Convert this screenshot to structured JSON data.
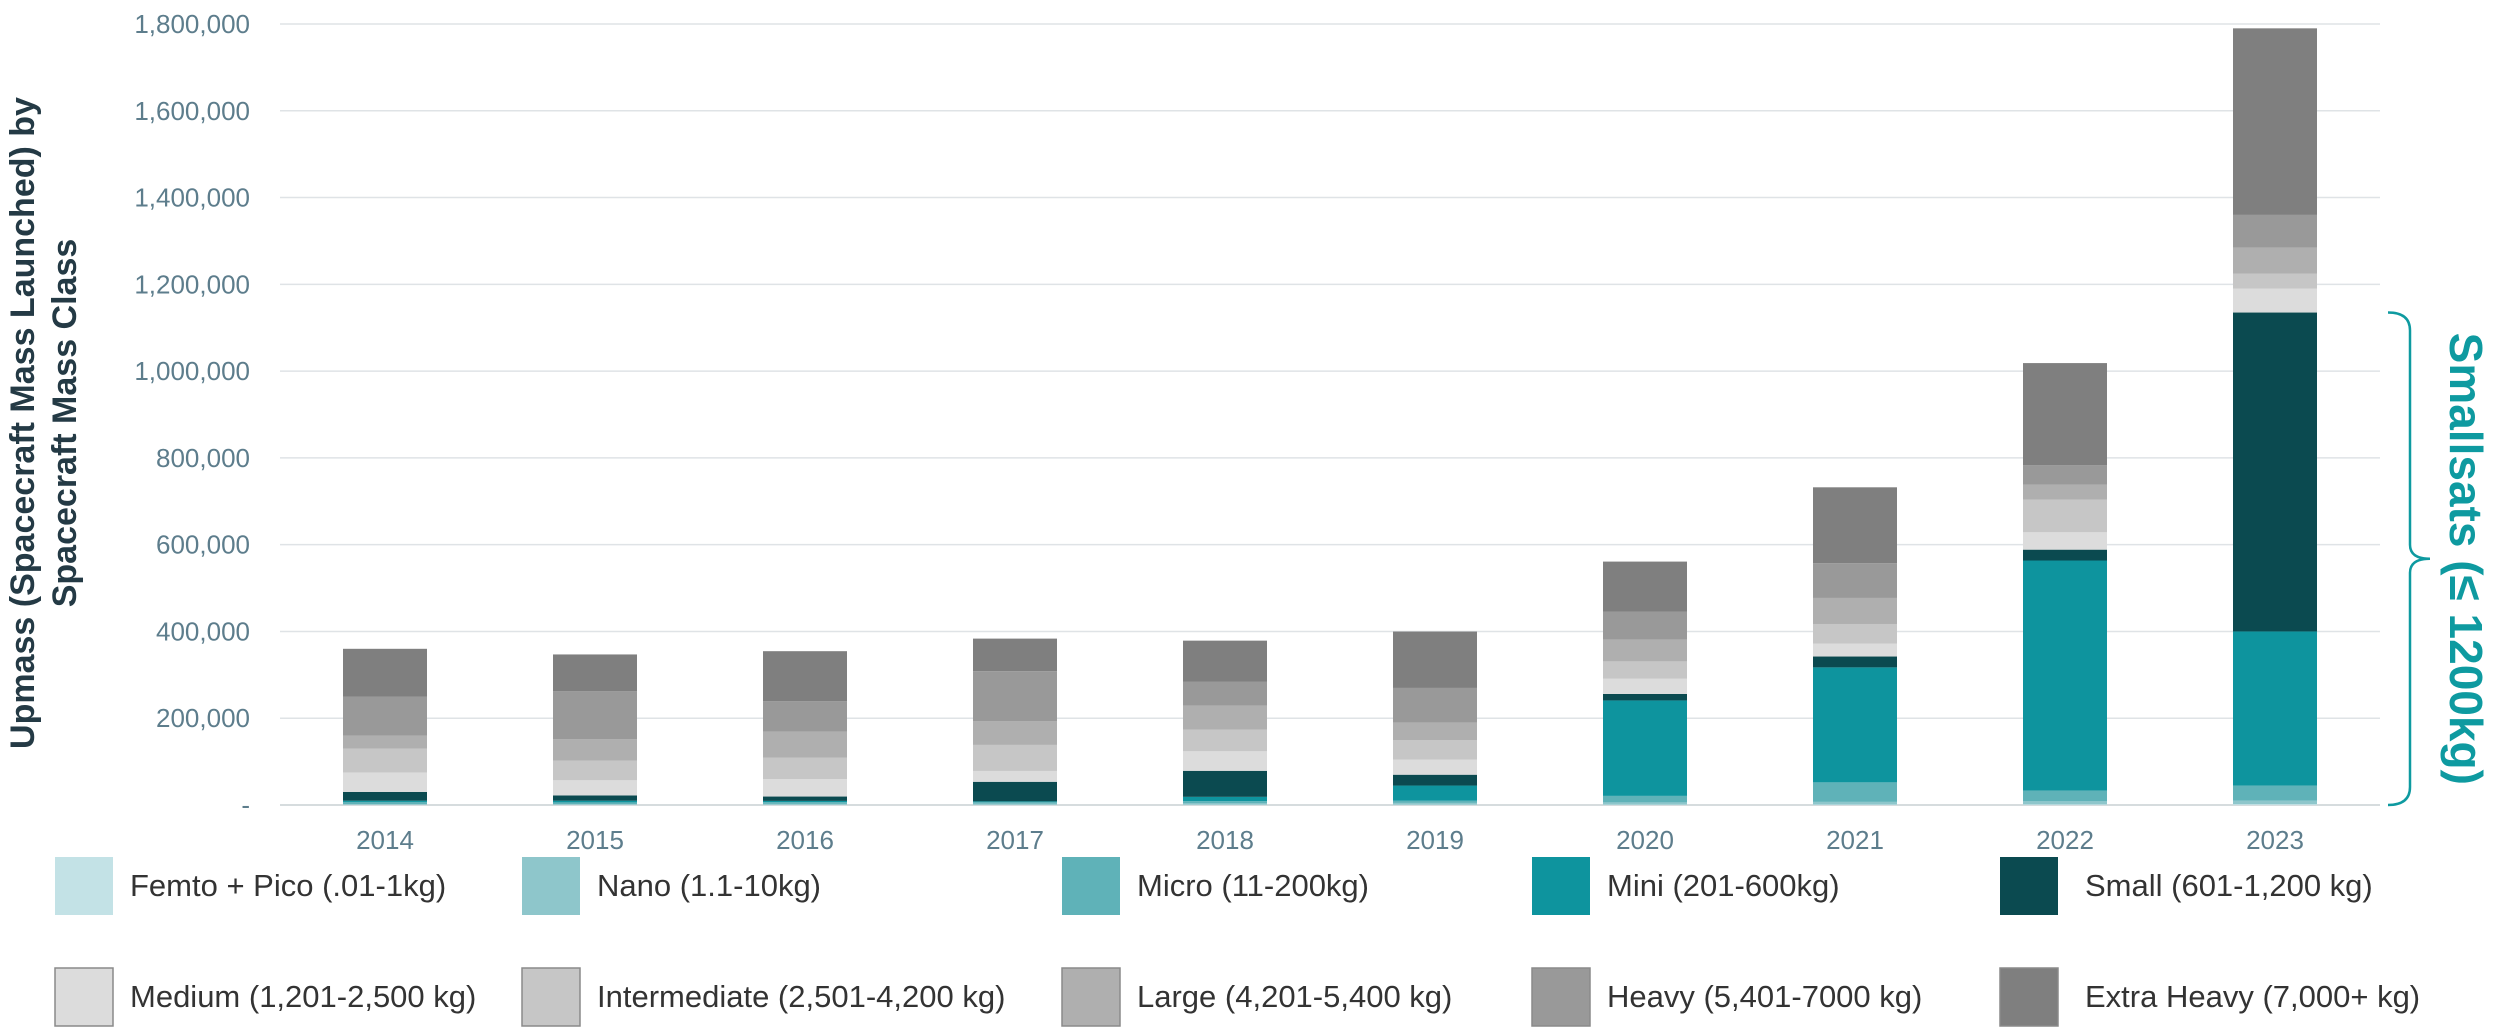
{
  "chart_data": {
    "type": "bar",
    "stacked": true,
    "title": "",
    "xlabel": "",
    "ylabel": "Upmass (Spacecraft Mass Launched) by Spacecraft Mass Class",
    "ylim": [
      0,
      1800000
    ],
    "yticks": [
      "-",
      "200,000",
      "400,000",
      "600,000",
      "800,000",
      "1,000,000",
      "1,200,000",
      "1,400,000",
      "1,600,000",
      "1,800,000"
    ],
    "grid": true,
    "legend_position": "bottom",
    "categories": [
      "2014",
      "2015",
      "2016",
      "2017",
      "2018",
      "2019",
      "2020",
      "2021",
      "2022",
      "2023"
    ],
    "series": [
      {
        "name": "Femto + Pico (.01-1kg)",
        "color": "#c3e2e6",
        "values": [
          500,
          500,
          500,
          500,
          800,
          800,
          1000,
          1200,
          1500,
          2000
        ]
      },
      {
        "name": "Nano (1.1-10kg)",
        "color": "#8ec6cb",
        "values": [
          1500,
          1500,
          2000,
          3000,
          3000,
          4000,
          5000,
          6000,
          7000,
          8000
        ]
      },
      {
        "name": "Micro (11-200kg)",
        "color": "#5fb2b8",
        "values": [
          5000,
          4000,
          4000,
          3000,
          5000,
          5000,
          15000,
          45000,
          25000,
          35000
        ]
      },
      {
        "name": "Mini (201-600kg)",
        "color": "#0e949e",
        "values": [
          3000,
          4000,
          3000,
          2000,
          10000,
          35000,
          220000,
          265000,
          530000,
          355000
        ]
      },
      {
        "name": "Small (601-1,200 kg)",
        "color": "#0b4a50",
        "values": [
          20000,
          12000,
          10000,
          45000,
          60000,
          25000,
          15000,
          25000,
          25000,
          735000
        ]
      },
      {
        "name": "Medium (1,201-2,500 kg)",
        "color": "#dcdcdc",
        "values": [
          45000,
          35000,
          40000,
          25000,
          45000,
          35000,
          35000,
          30000,
          40000,
          55000
        ]
      },
      {
        "name": "Intermediate (2,501-4,200 kg)",
        "color": "#c6c6c6",
        "values": [
          55000,
          45000,
          50000,
          60000,
          50000,
          45000,
          40000,
          45000,
          75000,
          35000
        ]
      },
      {
        "name": "Large (4,201-5,400 kg)",
        "color": "#afafaf",
        "values": [
          30000,
          50000,
          60000,
          55000,
          55000,
          40000,
          50000,
          60000,
          35000,
          60000
        ]
      },
      {
        "name": "Heavy (5,401-7000 kg)",
        "color": "#999999",
        "values": [
          90000,
          110000,
          70000,
          115000,
          55000,
          80000,
          65000,
          80000,
          45000,
          75000
        ]
      },
      {
        "name": "Extra Heavy (7,000+ kg)",
        "color": "#7f7f7f",
        "values": [
          110000,
          85000,
          115000,
          75000,
          95000,
          130000,
          115000,
          175000,
          235000,
          430000
        ]
      }
    ],
    "annotation": {
      "text": "Smallsats (≤ 1200kg)",
      "from_value": 0,
      "to_value": 1135000
    }
  }
}
